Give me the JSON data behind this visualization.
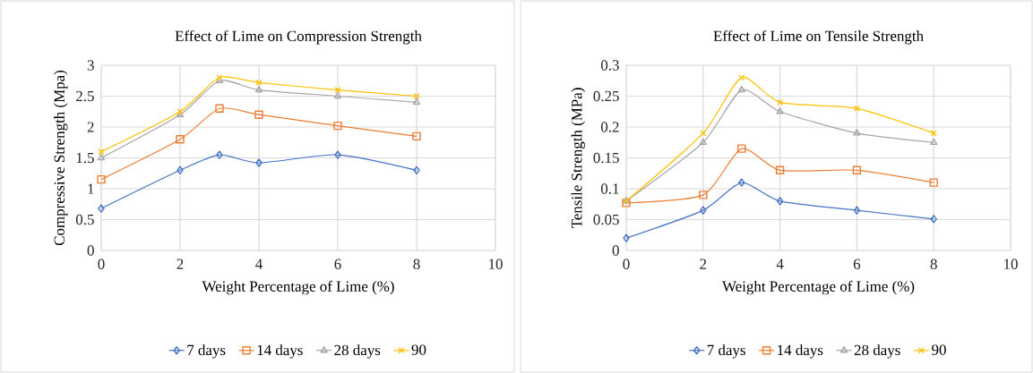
{
  "chart_data": [
    {
      "type": "line",
      "title": "Effect of Lime on Compression Strength",
      "xlabel": "Weight Percentage of Lime (%)",
      "ylabel": "Compressive Strength (Mpa)",
      "x": [
        0,
        2,
        3,
        4,
        6,
        8
      ],
      "xlim": [
        0,
        10
      ],
      "xticks": [
        0,
        2,
        4,
        6,
        8,
        10
      ],
      "ylim": [
        0,
        3
      ],
      "yticks": [
        0,
        0.5,
        1,
        1.5,
        2,
        2.5,
        3
      ],
      "grid": true,
      "legend": "bottom",
      "series": [
        {
          "name": "7 days",
          "color": "#4472c4",
          "marker": "diamond",
          "values": [
            0.68,
            1.3,
            1.55,
            1.42,
            1.55,
            1.3
          ]
        },
        {
          "name": "14 days",
          "color": "#ed7d31",
          "marker": "square",
          "values": [
            1.15,
            1.8,
            2.3,
            2.2,
            2.02,
            1.85
          ]
        },
        {
          "name": "28 days",
          "color": "#a5a5a5",
          "marker": "triangle",
          "values": [
            1.5,
            2.2,
            2.75,
            2.6,
            2.5,
            2.4
          ]
        },
        {
          "name": "90",
          "color": "#ffc000",
          "marker": "cross",
          "values": [
            1.6,
            2.25,
            2.8,
            2.72,
            2.6,
            2.5
          ]
        }
      ]
    },
    {
      "type": "line",
      "title": "Effect of Lime on Tensile Strength",
      "xlabel": "Weight Percentage of Lime (%)",
      "ylabel": "Tensile Strength (MPa)",
      "x": [
        0,
        2,
        3,
        4,
        6,
        8
      ],
      "xlim": [
        0,
        10
      ],
      "xticks": [
        0,
        2,
        4,
        6,
        8,
        10
      ],
      "ylim": [
        0,
        0.3
      ],
      "yticks": [
        0,
        0.05,
        0.1,
        0.15,
        0.2,
        0.25,
        0.3
      ],
      "grid": true,
      "legend": "bottom",
      "series": [
        {
          "name": "7 days",
          "color": "#4472c4",
          "marker": "diamond",
          "values": [
            0.02,
            0.065,
            0.11,
            0.08,
            0.065,
            0.051
          ]
        },
        {
          "name": "14 days",
          "color": "#ed7d31",
          "marker": "square",
          "values": [
            0.077,
            0.09,
            0.165,
            0.13,
            0.13,
            0.11
          ]
        },
        {
          "name": "28 days",
          "color": "#a5a5a5",
          "marker": "triangle",
          "values": [
            0.08,
            0.175,
            0.26,
            0.225,
            0.19,
            0.175
          ]
        },
        {
          "name": "90",
          "color": "#ffc000",
          "marker": "cross",
          "values": [
            0.08,
            0.19,
            0.28,
            0.24,
            0.23,
            0.19
          ]
        }
      ]
    }
  ]
}
